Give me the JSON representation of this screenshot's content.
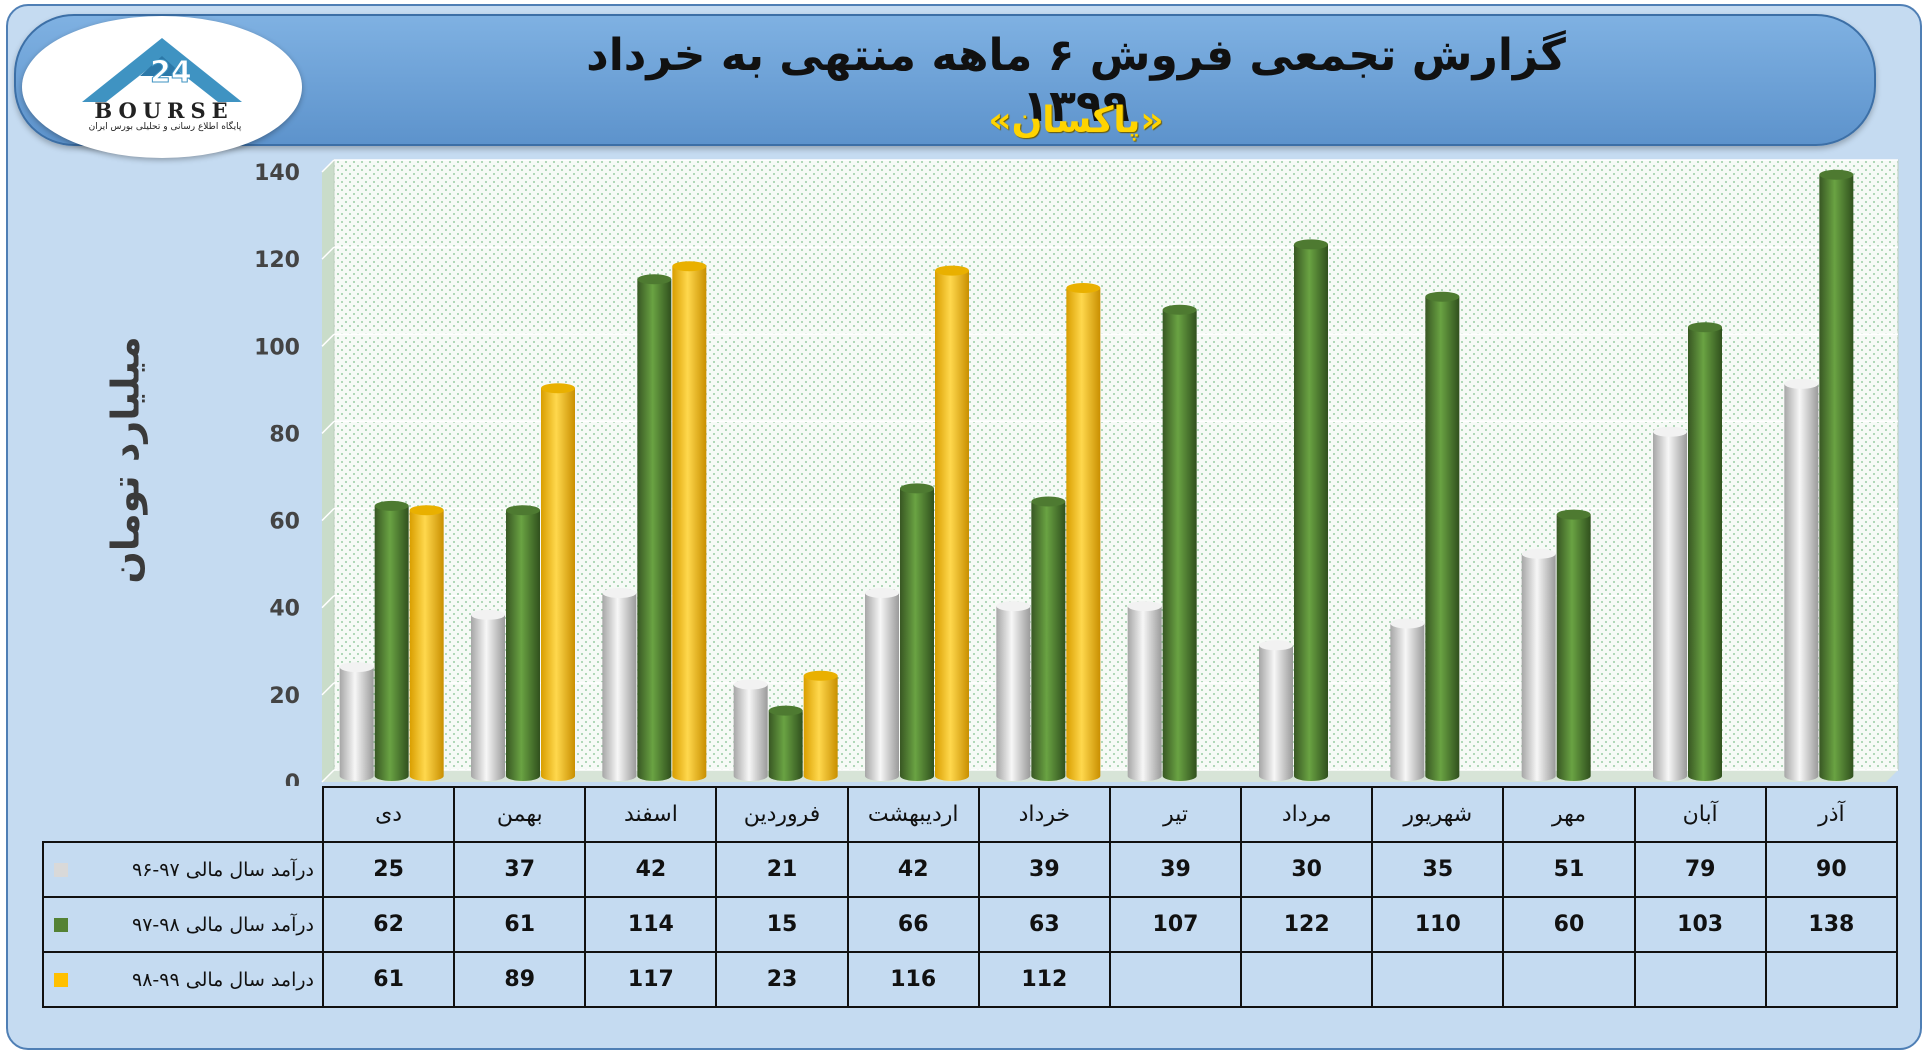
{
  "header": {
    "title": "گزارش تجمعی فروش ۶ ماهه منتهی به خرداد ۱۳۹۹",
    "subtitle": "«پاکسان»"
  },
  "logo": {
    "text": "BOURSE",
    "subtitle": "پایگاه اطلاع رسانی و تحلیلی بورس ایران"
  },
  "colors": {
    "series1": "#d9d9d9",
    "series2": "#548235",
    "series3": "#ffc000",
    "plot_bg": "#f4f9f4",
    "header_bg": "#6fa3da"
  },
  "chart_data": {
    "type": "bar",
    "ylabel": "میلیارد تومان",
    "ylim": [
      0,
      140
    ],
    "yticks": [
      0,
      20,
      40,
      60,
      80,
      100,
      120,
      140
    ],
    "grid": true,
    "categories": [
      "دی",
      "بهمن",
      "اسفند",
      "فروردین",
      "اردیبهشت",
      "خرداد",
      "تیر",
      "مرداد",
      "شهریور",
      "مهر",
      "آبان",
      "آذر"
    ],
    "series": [
      {
        "name": "درآمد سال مالی ۹۷-۹۶",
        "color": "#d9d9d9",
        "values": [
          25,
          37,
          42,
          21,
          42,
          39,
          39,
          30,
          35,
          51,
          79,
          90
        ]
      },
      {
        "name": "درآمد سال مالی ۹۸-۹۷",
        "color": "#548235",
        "values": [
          62,
          61,
          114,
          15,
          66,
          63,
          107,
          122,
          110,
          60,
          103,
          138
        ]
      },
      {
        "name": "درامد سال مالی ۹۹-۹۸",
        "color": "#ffc000",
        "values": [
          61,
          89,
          117,
          23,
          116,
          112,
          null,
          null,
          null,
          null,
          null,
          null
        ]
      }
    ]
  }
}
